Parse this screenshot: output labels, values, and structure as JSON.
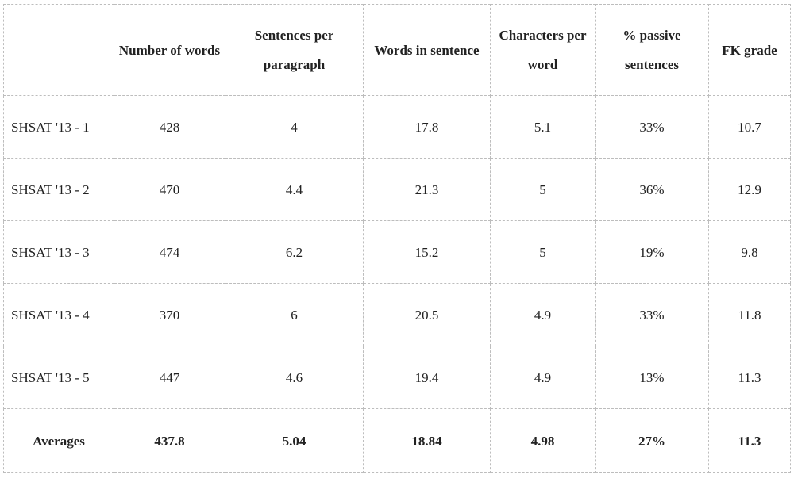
{
  "table": {
    "headers": [
      "",
      "Number of words",
      "Sentences per paragraph",
      "Words in sentence",
      "Characters per word",
      "% passive sentences",
      "FK grade"
    ],
    "rows": [
      [
        "SHSAT '13 - 1",
        "428",
        "4",
        "17.8",
        "5.1",
        "33%",
        "10.7"
      ],
      [
        "SHSAT '13 - 2",
        "470",
        "4.4",
        "21.3",
        "5",
        "36%",
        "12.9"
      ],
      [
        "SHSAT '13 - 3",
        "474",
        "6.2",
        "15.2",
        "5",
        "19%",
        "9.8"
      ],
      [
        "SHSAT '13 - 4",
        "370",
        "6",
        "20.5",
        "4.9",
        "33%",
        "11.8"
      ],
      [
        "SHSAT '13 - 5",
        "447",
        "4.6",
        "19.4",
        "4.9",
        "13%",
        "11.3"
      ]
    ],
    "averages": [
      "Averages",
      "437.8",
      "5.04",
      "18.84",
      "4.98",
      "27%",
      "11.3"
    ]
  }
}
